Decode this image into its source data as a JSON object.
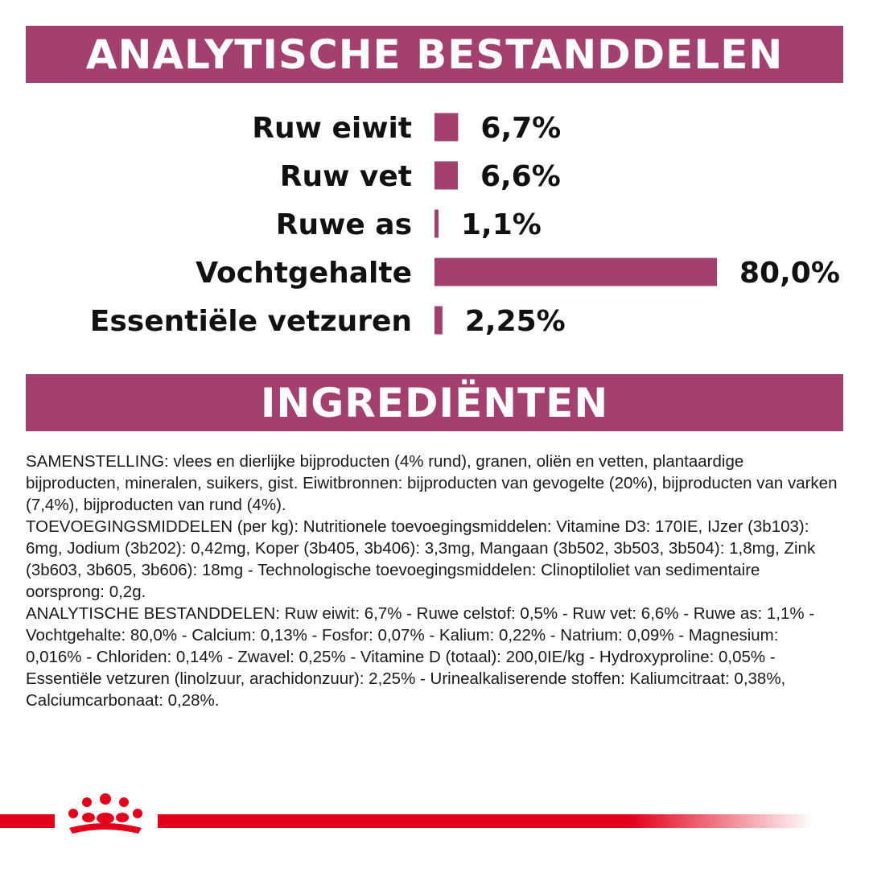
{
  "headings": {
    "analytics": "ANALYTISCHE BESTANDDELEN",
    "ingredients": "INGREDIËNTEN"
  },
  "colors": {
    "accent": "#a3406f",
    "brand_red": "#e2001a",
    "text": "#111111"
  },
  "chart_data": {
    "type": "bar",
    "orientation": "horizontal",
    "categories": [
      "Ruw eiwit",
      "Ruw vet",
      "Ruwe as",
      "Vochtgehalte",
      "Essentiële vetzuren"
    ],
    "values": [
      6.7,
      6.6,
      1.1,
      80.0,
      2.25
    ],
    "value_labels": [
      "6,7%",
      "6,6%",
      "1,1%",
      "80,0%",
      "2,25%"
    ],
    "unit": "%",
    "xlim": [
      0,
      80
    ],
    "grid": false,
    "legend": "none"
  },
  "ingredients": {
    "paragraphs": [
      "SAMENSTELLING: vlees en dierlijke bijproducten (4% rund), granen, oliën en vetten, plantaardige bijproducten, mineralen, suikers, gist. Eiwitbronnen: bijproducten van gevogelte (20%), bijproducten van varken (7,4%), bijproducten van rund (4%).",
      "TOEVOEGINGSMIDDELEN (per kg): Nutritionele toevoegingsmiddelen: Vitamine D3: 170IE, IJzer (3b103): 6mg, Jodium (3b202): 0,42mg, Koper (3b405, 3b406): 3,3mg, Mangaan (3b502, 3b503, 3b504): 1,8mg, Zink (3b603, 3b605, 3b606): 18mg - Technologische toevoegingsmiddelen: Clinoptiloliet van sedimentaire oorsprong: 0,2g.",
      "ANALYTISCHE BESTANDDELEN: Ruw eiwit: 6,7% - Ruwe celstof: 0,5% - Ruw vet: 6,6% - Ruwe as: 1,1% - Vochtgehalte: 80,0% - Calcium: 0,13% - Fosfor: 0,07% - Kalium: 0,22% - Natrium: 0,09% - Magnesium: 0,016% - Chloriden: 0,14% - Zwavel: 0,25% - Vitamine D (totaal): 200,0IE/kg - Hydroxyproline: 0,05% - Essentiële vetzuren (linolzuur, arachidonzuur): 2,25% - Urinealkaliserende stoffen: Kaliumcitraat: 0,38%, Calciumcarbonaat: 0,28%."
    ]
  },
  "footer": {
    "logo_icon": "crown-logo-icon"
  }
}
